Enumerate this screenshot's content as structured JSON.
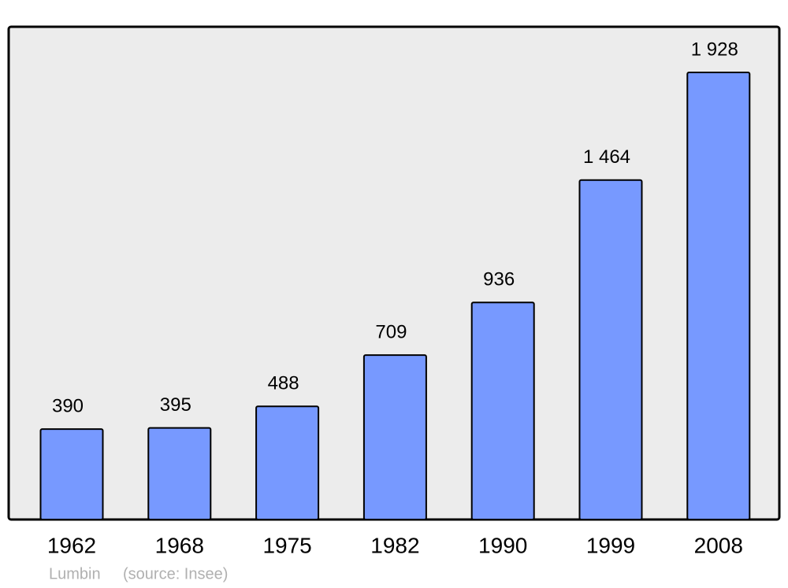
{
  "chart_data": {
    "type": "bar",
    "categories": [
      "1962",
      "1968",
      "1975",
      "1982",
      "1990",
      "1999",
      "2008"
    ],
    "values": [
      390,
      395,
      488,
      709,
      936,
      1464,
      1928
    ],
    "value_labels": [
      "390",
      "395",
      "488",
      "709",
      "936",
      "1 464",
      "1 928"
    ],
    "color": "#7799ff",
    "caption": "Lumbin",
    "source": "(source: Insee)"
  }
}
